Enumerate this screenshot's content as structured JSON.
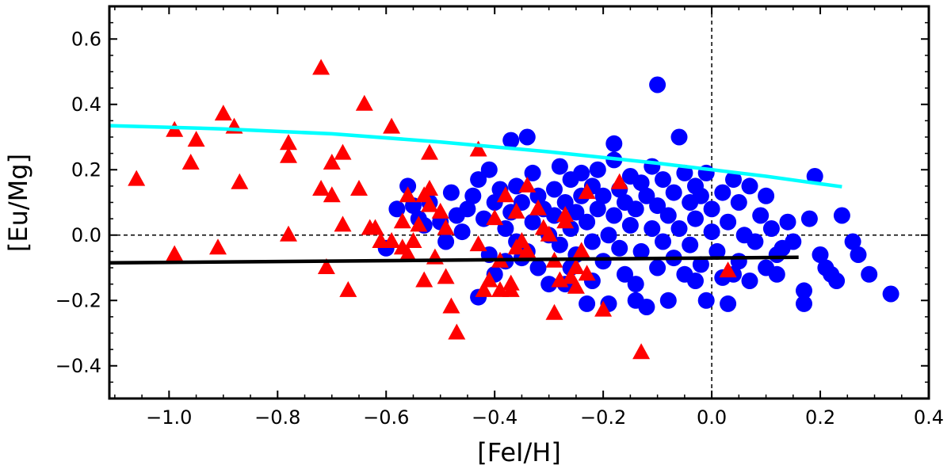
{
  "chart_data": {
    "type": "scatter",
    "title": "",
    "xlabel": "[FeI/H]",
    "ylabel": "[Eu/Mg]",
    "xlim": [
      -1.11,
      0.4
    ],
    "ylim": [
      -0.5,
      0.7
    ],
    "x_ticks": [
      -1.0,
      -0.8,
      -0.6,
      -0.4,
      -0.2,
      0.0,
      0.2,
      0.4
    ],
    "x_tick_labels": [
      "−1.0",
      "−0.8",
      "−0.6",
      "−0.4",
      "−0.2",
      "0.0",
      "0.2",
      "0.4"
    ],
    "y_ticks": [
      -0.4,
      -0.2,
      0.0,
      0.2,
      0.4,
      0.6
    ],
    "y_tick_labels": [
      "−0.4",
      "−0.2",
      "0.0",
      "0.2",
      "0.4",
      "0.6"
    ],
    "grid": false,
    "reference_lines": {
      "x": 0.0,
      "y": 0.0,
      "style": "dashed"
    },
    "colors": {
      "circles": "#0000ff",
      "triangles": "#ff0000",
      "upper_line": "#00ffff",
      "lower_line": "#000000"
    },
    "series": [
      {
        "name": "circles",
        "marker": "circle",
        "points": [
          [
            -0.6,
            -0.04
          ],
          [
            -0.58,
            0.08
          ],
          [
            -0.56,
            0.15
          ],
          [
            -0.55,
            0.09
          ],
          [
            -0.54,
            0.05
          ],
          [
            -0.53,
            0.03
          ],
          [
            -0.52,
            0.1
          ],
          [
            -0.5,
            0.04
          ],
          [
            -0.49,
            -0.02
          ],
          [
            -0.48,
            0.13
          ],
          [
            -0.47,
            0.06
          ],
          [
            -0.46,
            0.01
          ],
          [
            -0.45,
            0.08
          ],
          [
            -0.44,
            0.12
          ],
          [
            -0.43,
            0.17
          ],
          [
            -0.42,
            0.05
          ],
          [
            -0.41,
            0.2
          ],
          [
            -0.41,
            -0.06
          ],
          [
            -0.4,
            0.1
          ],
          [
            -0.4,
            -0.12
          ],
          [
            -0.39,
            0.14
          ],
          [
            -0.38,
            0.02
          ],
          [
            -0.38,
            -0.08
          ],
          [
            -0.37,
            0.29
          ],
          [
            -0.37,
            0.07
          ],
          [
            -0.36,
            0.15
          ],
          [
            -0.36,
            -0.02
          ],
          [
            -0.35,
            0.1
          ],
          [
            -0.34,
            0.3
          ],
          [
            -0.34,
            -0.05
          ],
          [
            -0.33,
            0.19
          ],
          [
            -0.33,
            0.04
          ],
          [
            -0.32,
            0.12
          ],
          [
            -0.32,
            -0.1
          ],
          [
            -0.31,
            0.08
          ],
          [
            -0.3,
            0.0
          ],
          [
            -0.3,
            -0.15
          ],
          [
            -0.29,
            0.14
          ],
          [
            -0.29,
            0.06
          ],
          [
            -0.28,
            0.21
          ],
          [
            -0.28,
            -0.03
          ],
          [
            -0.27,
            0.1
          ],
          [
            -0.27,
            -0.15
          ],
          [
            -0.26,
            0.17
          ],
          [
            -0.26,
            0.02
          ],
          [
            -0.25,
            0.07
          ],
          [
            -0.25,
            -0.06
          ],
          [
            -0.24,
            0.19
          ],
          [
            -0.24,
            0.12
          ],
          [
            -0.23,
            -0.21
          ],
          [
            -0.23,
            0.04
          ],
          [
            -0.22,
            0.15
          ],
          [
            -0.22,
            -0.02
          ],
          [
            -0.21,
            0.08
          ],
          [
            -0.21,
            0.2
          ],
          [
            -0.2,
            -0.08
          ],
          [
            -0.2,
            0.12
          ],
          [
            -0.19,
            0.0
          ],
          [
            -0.19,
            -0.21
          ],
          [
            -0.18,
            0.06
          ],
          [
            -0.18,
            0.28
          ],
          [
            -0.18,
            0.23
          ],
          [
            -0.17,
            -0.04
          ],
          [
            -0.17,
            0.14
          ],
          [
            -0.16,
            0.1
          ],
          [
            -0.16,
            -0.12
          ],
          [
            -0.15,
            0.18
          ],
          [
            -0.15,
            0.03
          ],
          [
            -0.14,
            -0.2
          ],
          [
            -0.14,
            0.08
          ],
          [
            -0.13,
            0.16
          ],
          [
            -0.13,
            -0.05
          ],
          [
            -0.12,
            -0.22
          ],
          [
            -0.12,
            0.12
          ],
          [
            -0.11,
            0.21
          ],
          [
            -0.11,
            0.02
          ],
          [
            -0.1,
            0.46
          ],
          [
            -0.1,
            -0.1
          ],
          [
            -0.1,
            0.09
          ],
          [
            -0.09,
            0.17
          ],
          [
            -0.09,
            -0.02
          ],
          [
            -0.08,
            -0.2
          ],
          [
            -0.08,
            0.06
          ],
          [
            -0.07,
            0.13
          ],
          [
            -0.07,
            -0.07
          ],
          [
            -0.06,
            0.3
          ],
          [
            -0.06,
            0.02
          ],
          [
            -0.05,
            0.19
          ],
          [
            -0.05,
            -0.12
          ],
          [
            -0.04,
            0.1
          ],
          [
            -0.04,
            -0.03
          ],
          [
            -0.03,
            0.15
          ],
          [
            -0.03,
            0.05
          ],
          [
            -0.02,
            -0.09
          ],
          [
            -0.02,
            0.12
          ],
          [
            -0.01,
            0.19
          ],
          [
            -0.01,
            -0.2
          ],
          [
            0.0,
            0.01
          ],
          [
            0.0,
            0.08
          ],
          [
            0.01,
            -0.05
          ],
          [
            0.02,
            0.13
          ],
          [
            0.02,
            -0.13
          ],
          [
            0.03,
            0.04
          ],
          [
            0.03,
            -0.21
          ],
          [
            0.04,
            0.17
          ],
          [
            0.05,
            -0.08
          ],
          [
            0.05,
            0.1
          ],
          [
            0.06,
            0.0
          ],
          [
            0.07,
            -0.14
          ],
          [
            0.07,
            0.15
          ],
          [
            0.08,
            -0.02
          ],
          [
            0.09,
            0.06
          ],
          [
            0.1,
            -0.1
          ],
          [
            0.1,
            0.12
          ],
          [
            0.11,
            0.02
          ],
          [
            0.12,
            -0.06
          ],
          [
            0.13,
            -0.04
          ],
          [
            0.14,
            0.04
          ],
          [
            0.15,
            -0.02
          ],
          [
            0.17,
            -0.17
          ],
          [
            0.17,
            -0.21
          ],
          [
            0.18,
            0.05
          ],
          [
            0.19,
            0.18
          ],
          [
            0.2,
            -0.06
          ],
          [
            0.21,
            -0.1
          ],
          [
            0.22,
            -0.12
          ],
          [
            0.23,
            -0.14
          ],
          [
            0.24,
            0.06
          ],
          [
            0.26,
            -0.02
          ],
          [
            0.27,
            -0.06
          ],
          [
            0.29,
            -0.12
          ],
          [
            0.33,
            -0.18
          ],
          [
            -0.43,
            -0.19
          ],
          [
            -0.35,
            -0.07
          ],
          [
            -0.26,
            -0.1
          ],
          [
            -0.22,
            -0.14
          ],
          [
            -0.14,
            -0.15
          ],
          [
            -0.03,
            -0.14
          ],
          [
            0.04,
            -0.12
          ],
          [
            0.12,
            -0.12
          ]
        ]
      },
      {
        "name": "triangles",
        "marker": "triangle",
        "points": [
          [
            -1.06,
            0.17
          ],
          [
            -0.99,
            0.32
          ],
          [
            -0.99,
            -0.06
          ],
          [
            -0.95,
            0.29
          ],
          [
            -0.96,
            0.22
          ],
          [
            -0.91,
            -0.04
          ],
          [
            -0.9,
            0.37
          ],
          [
            -0.88,
            0.33
          ],
          [
            -0.87,
            0.16
          ],
          [
            -0.78,
            0.28
          ],
          [
            -0.78,
            0.24
          ],
          [
            -0.78,
            0.0
          ],
          [
            -0.72,
            0.51
          ],
          [
            -0.72,
            0.14
          ],
          [
            -0.71,
            -0.1
          ],
          [
            -0.7,
            0.22
          ],
          [
            -0.7,
            0.12
          ],
          [
            -0.68,
            0.25
          ],
          [
            -0.68,
            0.03
          ],
          [
            -0.67,
            -0.17
          ],
          [
            -0.65,
            0.14
          ],
          [
            -0.64,
            0.4
          ],
          [
            -0.63,
            0.02
          ],
          [
            -0.62,
            0.02
          ],
          [
            -0.61,
            -0.02
          ],
          [
            -0.59,
            0.33
          ],
          [
            -0.59,
            -0.02
          ],
          [
            -0.57,
            0.04
          ],
          [
            -0.57,
            -0.04
          ],
          [
            -0.56,
            0.12
          ],
          [
            -0.56,
            -0.06
          ],
          [
            -0.55,
            -0.02
          ],
          [
            -0.54,
            0.03
          ],
          [
            -0.53,
            0.12
          ],
          [
            -0.53,
            -0.14
          ],
          [
            -0.52,
            0.25
          ],
          [
            -0.52,
            0.14
          ],
          [
            -0.52,
            0.09
          ],
          [
            -0.51,
            -0.07
          ],
          [
            -0.5,
            0.07
          ],
          [
            -0.49,
            -0.13
          ],
          [
            -0.49,
            0.02
          ],
          [
            -0.48,
            -0.22
          ],
          [
            -0.47,
            -0.3
          ],
          [
            -0.43,
            0.26
          ],
          [
            -0.43,
            -0.03
          ],
          [
            -0.42,
            -0.17
          ],
          [
            -0.41,
            -0.14
          ],
          [
            -0.4,
            0.05
          ],
          [
            -0.39,
            -0.17
          ],
          [
            -0.39,
            -0.08
          ],
          [
            -0.38,
            0.12
          ],
          [
            -0.37,
            -0.15
          ],
          [
            -0.37,
            -0.17
          ],
          [
            -0.36,
            0.07
          ],
          [
            -0.36,
            -0.04
          ],
          [
            -0.35,
            -0.02
          ],
          [
            -0.34,
            0.15
          ],
          [
            -0.34,
            -0.05
          ],
          [
            -0.32,
            0.08
          ],
          [
            -0.31,
            0.02
          ],
          [
            -0.3,
            0.0
          ],
          [
            -0.29,
            -0.08
          ],
          [
            -0.29,
            -0.24
          ],
          [
            -0.28,
            -0.14
          ],
          [
            -0.27,
            0.06
          ],
          [
            -0.27,
            0.04
          ],
          [
            -0.26,
            -0.13
          ],
          [
            -0.25,
            -0.16
          ],
          [
            -0.25,
            -0.1
          ],
          [
            -0.24,
            -0.05
          ],
          [
            -0.23,
            -0.12
          ],
          [
            -0.23,
            0.13
          ],
          [
            -0.2,
            -0.23
          ],
          [
            -0.17,
            0.16
          ],
          [
            -0.13,
            -0.36
          ],
          [
            0.03,
            -0.11
          ]
        ]
      },
      {
        "name": "upper-trend",
        "type": "line",
        "points": [
          [
            -1.11,
            0.335
          ],
          [
            -0.9,
            0.325
          ],
          [
            -0.7,
            0.31
          ],
          [
            -0.5,
            0.285
          ],
          [
            -0.3,
            0.255
          ],
          [
            -0.1,
            0.22
          ],
          [
            0.0,
            0.2
          ],
          [
            0.1,
            0.18
          ],
          [
            0.2,
            0.157
          ],
          [
            0.24,
            0.148
          ]
        ]
      },
      {
        "name": "lower-trend",
        "type": "line",
        "points": [
          [
            -1.11,
            -0.085
          ],
          [
            0.16,
            -0.068
          ]
        ]
      }
    ]
  }
}
